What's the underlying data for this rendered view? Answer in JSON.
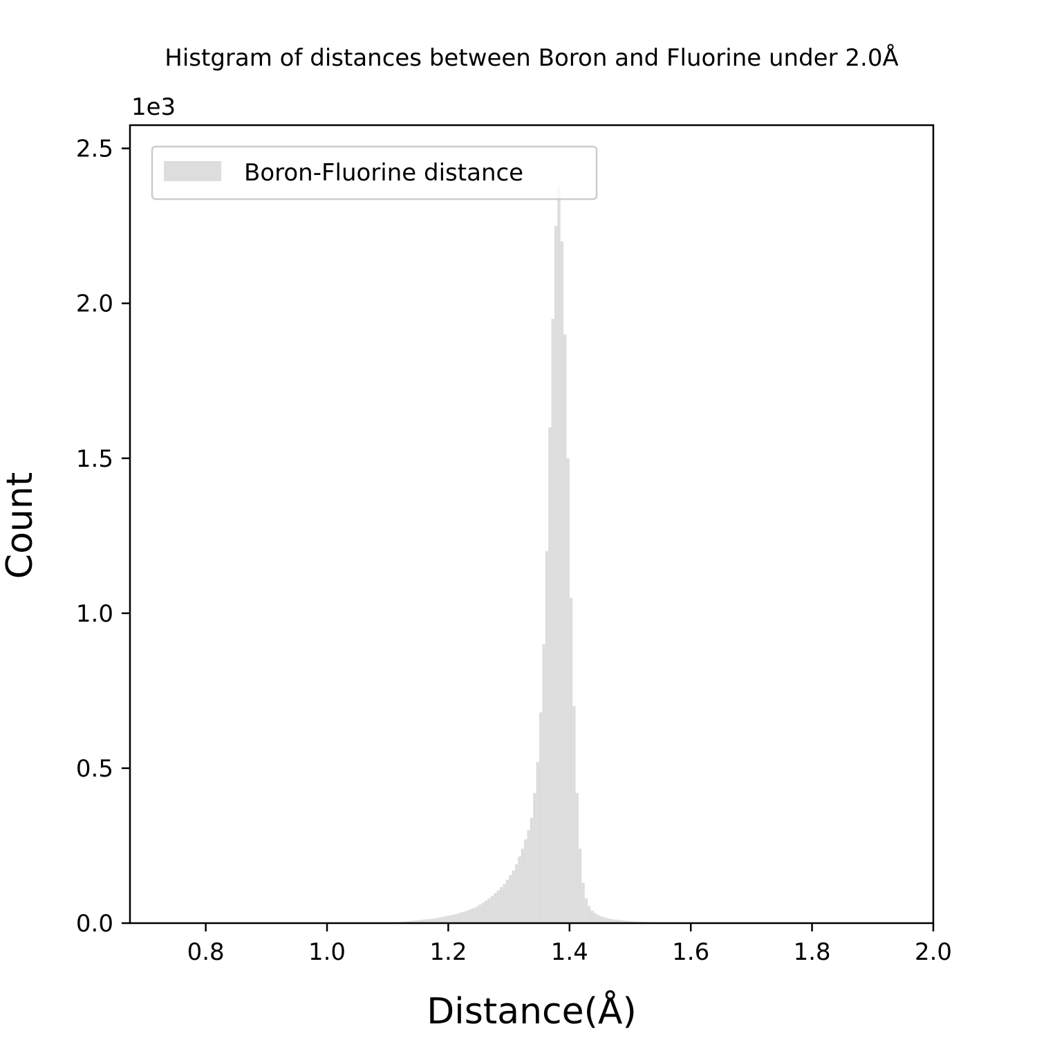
{
  "chart_data": {
    "type": "bar",
    "title": "Histgram of distances between Boron and Fluorine under 2.0Å",
    "xlabel": "Distance(Å)",
    "ylabel": "Count",
    "y_offset_text": "1e3",
    "xlim": [
      0.675,
      2.0
    ],
    "ylim": [
      0,
      2.575
    ],
    "xticks": [
      "0.8",
      "1.0",
      "1.2",
      "1.4",
      "1.6",
      "1.8",
      "2.0"
    ],
    "yticks": [
      "0.0",
      "0.5",
      "1.0",
      "1.5",
      "2.0",
      "2.5"
    ],
    "legend": {
      "position": "upper-left",
      "entries": [
        "Boron-Fluorine distance"
      ]
    },
    "bar_color": "#dddddd",
    "bin_width": 0.005,
    "grid": false,
    "series": [
      {
        "name": "Boron-Fluorine distance",
        "x": [
          1.1,
          1.105,
          1.11,
          1.115,
          1.12,
          1.125,
          1.13,
          1.135,
          1.14,
          1.145,
          1.15,
          1.155,
          1.16,
          1.165,
          1.17,
          1.175,
          1.18,
          1.185,
          1.19,
          1.195,
          1.2,
          1.205,
          1.21,
          1.215,
          1.22,
          1.225,
          1.23,
          1.235,
          1.24,
          1.245,
          1.25,
          1.255,
          1.26,
          1.265,
          1.27,
          1.275,
          1.28,
          1.285,
          1.29,
          1.295,
          1.3,
          1.305,
          1.31,
          1.315,
          1.32,
          1.325,
          1.33,
          1.335,
          1.34,
          1.345,
          1.35,
          1.355,
          1.36,
          1.365,
          1.37,
          1.375,
          1.38,
          1.385,
          1.39,
          1.395,
          1.4,
          1.405,
          1.41,
          1.415,
          1.42,
          1.425,
          1.43,
          1.435,
          1.44,
          1.445,
          1.45,
          1.455,
          1.46,
          1.465,
          1.47,
          1.475,
          1.48,
          1.485,
          1.49,
          1.495,
          1.5,
          1.505,
          1.51,
          1.515,
          1.52,
          1.525,
          1.53,
          1.535,
          1.54,
          1.545,
          1.55,
          1.555,
          1.56,
          1.565,
          1.57,
          1.575,
          1.58,
          1.585,
          1.59,
          1.595
        ],
        "values": [
          0.002,
          0.002,
          0.003,
          0.003,
          0.004,
          0.005,
          0.006,
          0.007,
          0.008,
          0.009,
          0.01,
          0.011,
          0.012,
          0.013,
          0.014,
          0.015,
          0.017,
          0.019,
          0.021,
          0.023,
          0.025,
          0.027,
          0.029,
          0.032,
          0.035,
          0.038,
          0.041,
          0.045,
          0.049,
          0.054,
          0.06,
          0.066,
          0.073,
          0.08,
          0.088,
          0.097,
          0.106,
          0.116,
          0.126,
          0.14,
          0.155,
          0.17,
          0.19,
          0.215,
          0.24,
          0.27,
          0.3,
          0.34,
          0.42,
          0.52,
          0.68,
          0.9,
          1.2,
          1.6,
          1.95,
          2.25,
          2.38,
          2.2,
          1.9,
          1.5,
          1.05,
          0.7,
          0.42,
          0.24,
          0.13,
          0.08,
          0.055,
          0.04,
          0.032,
          0.026,
          0.022,
          0.019,
          0.016,
          0.014,
          0.012,
          0.011,
          0.01,
          0.009,
          0.008,
          0.007,
          0.006,
          0.005,
          0.005,
          0.004,
          0.004,
          0.003,
          0.003,
          0.003,
          0.002,
          0.002,
          0.002,
          0.002,
          0.002,
          0.001,
          0.001,
          0.001,
          0.001,
          0.001,
          0.001,
          0.001
        ]
      }
    ]
  }
}
